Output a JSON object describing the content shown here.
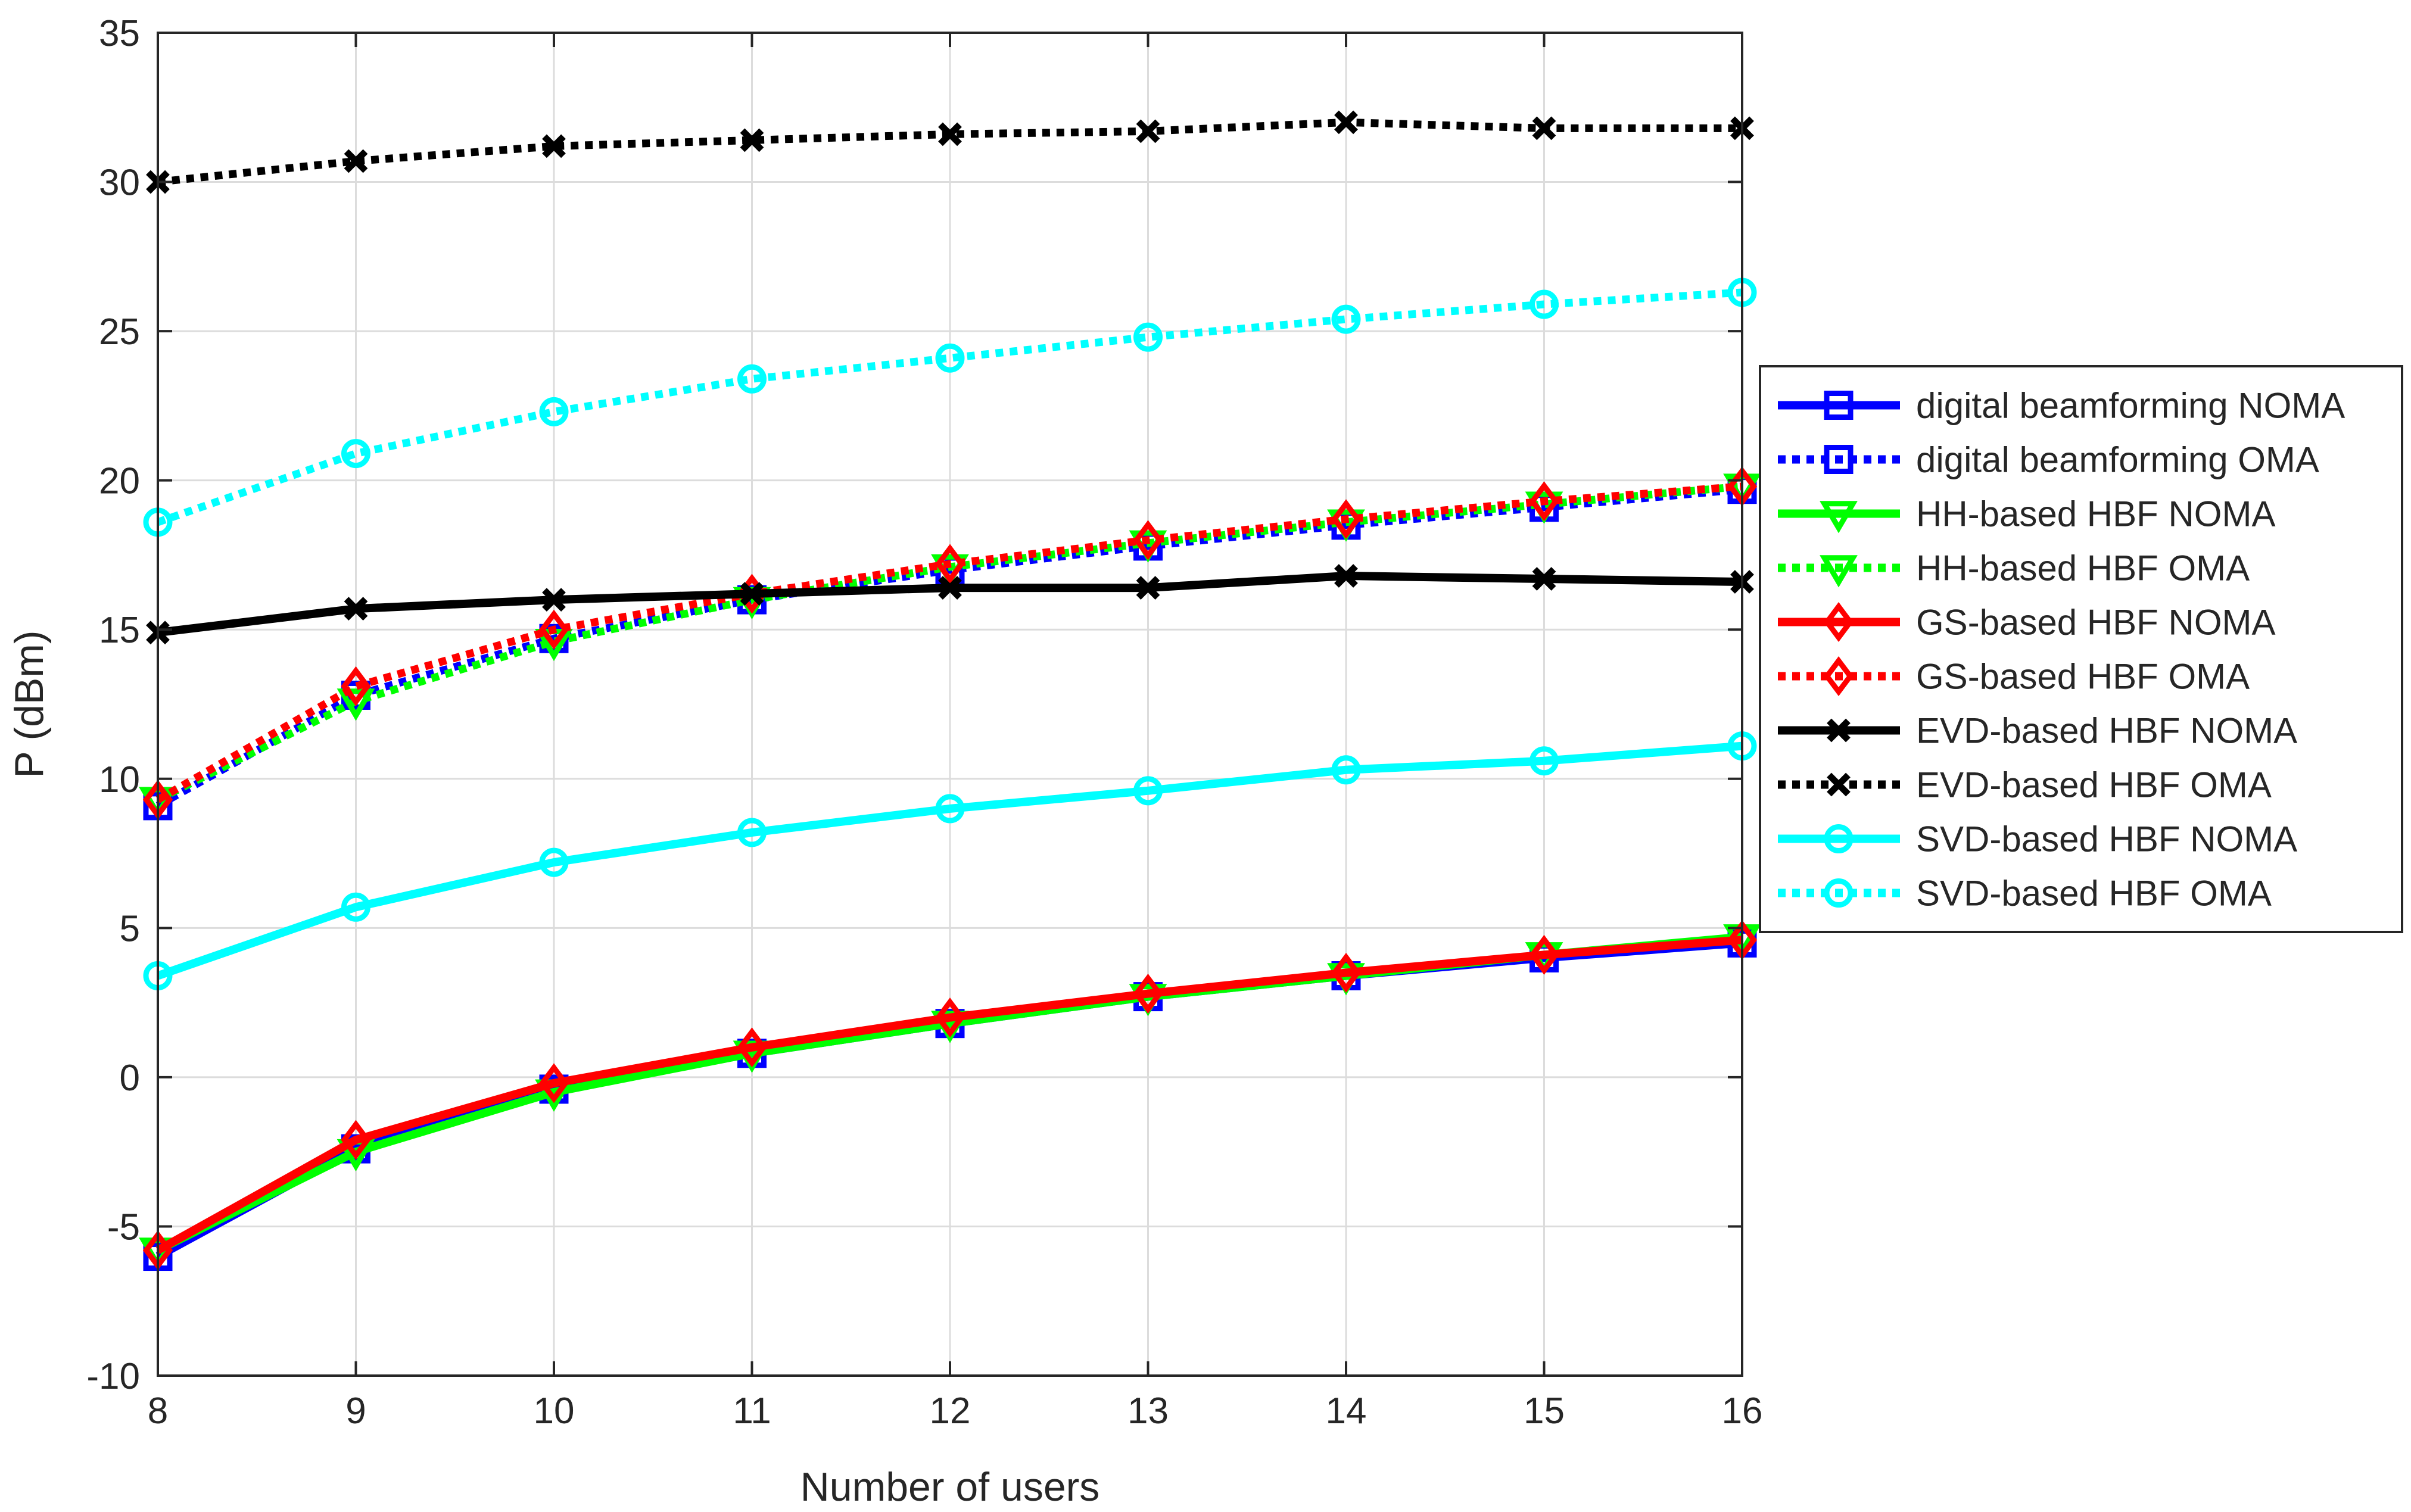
{
  "chart_data": {
    "type": "line",
    "title": "",
    "xlabel": "Number of users",
    "ylabel": "P (dBm)",
    "xlim": [
      8,
      16
    ],
    "ylim": [
      -10,
      35
    ],
    "xticks": [
      8,
      9,
      10,
      11,
      12,
      13,
      14,
      15,
      16
    ],
    "yticks": [
      -10,
      -5,
      0,
      5,
      10,
      15,
      20,
      25,
      30,
      35
    ],
    "xtick_labels": [
      "8",
      "9",
      "10",
      "11",
      "12",
      "13",
      "14",
      "15",
      "16"
    ],
    "ytick_labels": [
      "-10",
      "-5",
      "0",
      "5",
      "10",
      "15",
      "20",
      "25",
      "30",
      "35"
    ],
    "grid": true,
    "legend_position": "right",
    "x": [
      8,
      9,
      10,
      11,
      12,
      13,
      14,
      15,
      16
    ],
    "series": [
      {
        "name": "digital beamforming NOMA",
        "color": "#0000ff",
        "line_style": "solid",
        "marker": "square",
        "values": [
          -6.0,
          -2.4,
          -0.4,
          0.8,
          1.8,
          2.7,
          3.4,
          4.0,
          4.5
        ]
      },
      {
        "name": "digital beamforming OMA",
        "color": "#0000ff",
        "line_style": "dotted",
        "marker": "square",
        "values": [
          9.1,
          12.8,
          14.7,
          16.0,
          17.0,
          17.8,
          18.5,
          19.1,
          19.7
        ]
      },
      {
        "name": "HH-based HBF NOMA",
        "color": "#00ff00",
        "line_style": "solid",
        "marker": "triangle-down",
        "values": [
          -5.8,
          -2.5,
          -0.5,
          0.8,
          1.8,
          2.7,
          3.4,
          4.1,
          4.7
        ]
      },
      {
        "name": "HH-based HBF OMA",
        "color": "#00ff00",
        "line_style": "dotted",
        "marker": "triangle-down",
        "values": [
          9.3,
          12.6,
          14.6,
          16.0,
          17.1,
          17.9,
          18.6,
          19.2,
          19.8
        ]
      },
      {
        "name": "GS-based HBF NOMA",
        "color": "#ff0000",
        "line_style": "solid",
        "marker": "diamond",
        "values": [
          -5.8,
          -2.1,
          -0.2,
          1.0,
          2.0,
          2.8,
          3.5,
          4.1,
          4.6
        ]
      },
      {
        "name": "GS-based HBF OMA",
        "color": "#ff0000",
        "line_style": "dotted",
        "marker": "diamond",
        "values": [
          9.3,
          13.1,
          15.0,
          16.2,
          17.2,
          18.0,
          18.7,
          19.3,
          19.8
        ]
      },
      {
        "name": "EVD-based HBF NOMA",
        "color": "#000000",
        "line_style": "solid",
        "marker": "x",
        "values": [
          14.9,
          15.7,
          16.0,
          16.2,
          16.4,
          16.4,
          16.8,
          16.7,
          16.6
        ]
      },
      {
        "name": "EVD-based HBF OMA",
        "color": "#000000",
        "line_style": "dotted",
        "marker": "x",
        "values": [
          30.0,
          30.7,
          31.2,
          31.4,
          31.6,
          31.7,
          32.0,
          31.8,
          31.8
        ]
      },
      {
        "name": "SVD-based HBF NOMA",
        "color": "#00ffff",
        "line_style": "solid",
        "marker": "circle",
        "values": [
          3.4,
          5.7,
          7.2,
          8.2,
          9.0,
          9.6,
          10.3,
          10.6,
          11.1
        ]
      },
      {
        "name": "SVD-based HBF OMA",
        "color": "#00ffff",
        "line_style": "dotted",
        "marker": "circle",
        "values": [
          18.6,
          20.9,
          22.3,
          23.4,
          24.1,
          24.8,
          25.4,
          25.9,
          26.3
        ]
      }
    ]
  }
}
